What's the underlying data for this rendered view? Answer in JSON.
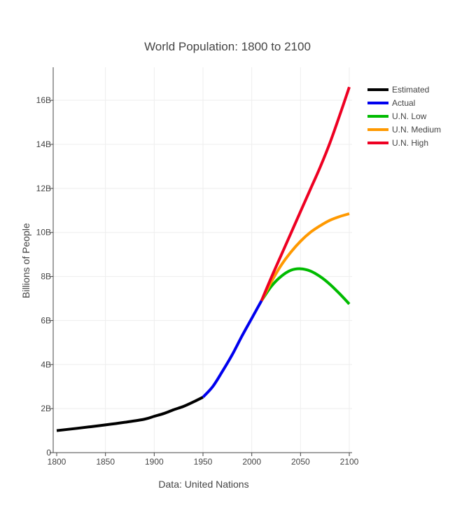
{
  "chart_data": {
    "type": "line",
    "title": "World Population: 1800 to 2100",
    "xlabel": "Data: United Nations",
    "ylabel": "Billions of People",
    "xlim": [
      1800,
      2100
    ],
    "ylim": [
      0,
      17.5
    ],
    "x_ticks": [
      1800,
      1850,
      1900,
      1950,
      2000,
      2050,
      2100
    ],
    "x_tick_labels": [
      "1800",
      "1850",
      "1900",
      "1950",
      "2000",
      "2050",
      "2100"
    ],
    "y_ticks": [
      0,
      2,
      4,
      6,
      8,
      10,
      12,
      14,
      16
    ],
    "y_tick_labels": [
      "0",
      "2B",
      "4B",
      "6B",
      "8B",
      "10B",
      "12B",
      "14B",
      "16B"
    ],
    "grid": true,
    "legend_position": "top-right",
    "series": [
      {
        "name": "Estimated",
        "color": "#000000",
        "x": [
          1800,
          1820,
          1850,
          1870,
          1890,
          1900,
          1910,
          1920,
          1930,
          1940,
          1950
        ],
        "y": [
          1.0,
          1.1,
          1.26,
          1.38,
          1.52,
          1.65,
          1.78,
          1.95,
          2.1,
          2.3,
          2.52
        ]
      },
      {
        "name": "Actual",
        "color": "#0000ee",
        "x": [
          1950,
          1960,
          1970,
          1980,
          1990,
          2000,
          2005,
          2010
        ],
        "y": [
          2.52,
          3.0,
          3.7,
          4.45,
          5.3,
          6.1,
          6.5,
          6.9
        ]
      },
      {
        "name": "U.N. Low",
        "color": "#00bb00",
        "x": [
          2010,
          2020,
          2030,
          2040,
          2050,
          2060,
          2070,
          2080,
          2090,
          2100
        ],
        "y": [
          6.9,
          7.55,
          8.0,
          8.28,
          8.35,
          8.25,
          8.0,
          7.65,
          7.22,
          6.75
        ]
      },
      {
        "name": "U.N. Medium",
        "color": "#ff9900",
        "x": [
          2010,
          2020,
          2030,
          2040,
          2050,
          2060,
          2070,
          2080,
          2090,
          2100
        ],
        "y": [
          6.9,
          7.75,
          8.5,
          9.1,
          9.6,
          10.0,
          10.3,
          10.55,
          10.72,
          10.85
        ]
      },
      {
        "name": "U.N. High",
        "color": "#ee0022",
        "x": [
          2010,
          2020,
          2030,
          2040,
          2050,
          2060,
          2070,
          2080,
          2090,
          2100
        ],
        "y": [
          6.9,
          7.95,
          8.95,
          9.95,
          10.95,
          11.95,
          12.95,
          14.05,
          15.3,
          16.6
        ]
      }
    ]
  }
}
